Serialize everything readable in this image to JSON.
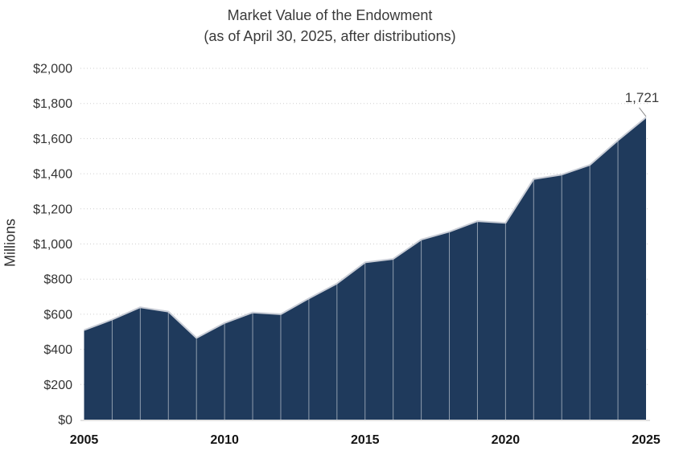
{
  "chart_data": {
    "type": "area",
    "title": "Market Value of the Endowment",
    "subtitle": "(as of April 30, 2025, after distributions)",
    "ylabel": "Millions",
    "xlabel": "",
    "x": [
      2005,
      2006,
      2007,
      2008,
      2009,
      2010,
      2011,
      2012,
      2013,
      2014,
      2015,
      2016,
      2017,
      2018,
      2019,
      2020,
      2021,
      2022,
      2023,
      2024,
      2025
    ],
    "values": [
      510,
      570,
      640,
      615,
      465,
      550,
      610,
      600,
      690,
      775,
      895,
      915,
      1025,
      1070,
      1130,
      1120,
      1370,
      1395,
      1450,
      1590,
      1721
    ],
    "ylim": [
      0,
      2000
    ],
    "ytick_step": 200,
    "ytick_labels": [
      "$0",
      "$200",
      "$400",
      "$600",
      "$800",
      "$1,000",
      "$1,200",
      "$1,400",
      "$1,600",
      "$1,800",
      "$2,000"
    ],
    "xtick_labels": [
      "2005",
      "2010",
      "2015",
      "2020",
      "2025"
    ],
    "xtick_years": [
      2005,
      2010,
      2015,
      2020,
      2025
    ],
    "last_point_label": "1,721",
    "grid": "horizontal-dotted",
    "legend": "none",
    "colors": {
      "area_fill": "#1f3a5c",
      "area_top_edge": "#c9cdd6",
      "year_divider": "rgba(255,255,255,0.5)",
      "gridline": "#cfcfcf",
      "axis_line": "#d9d9d9",
      "leader_line": "#8a8a8a",
      "title_text": "#3a3a3a",
      "tick_text": "#333333"
    }
  }
}
